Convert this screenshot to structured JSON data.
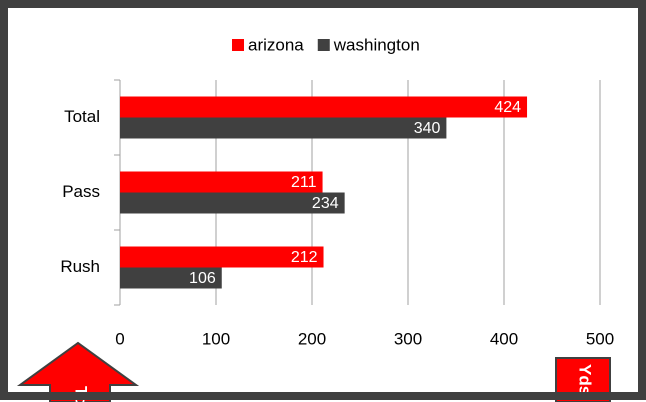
{
  "chart_data": {
    "type": "hbar",
    "categories": [
      "Total",
      "Pass",
      "Rush"
    ],
    "series": [
      {
        "name": "arizona",
        "color": "#ff0000",
        "values": [
          424,
          211,
          212
        ]
      },
      {
        "name": "washington",
        "color": "#404040",
        "values": [
          340,
          234,
          106
        ]
      }
    ],
    "xlim": [
      0,
      500
    ],
    "xticks": [
      0,
      100,
      200,
      300,
      400,
      500
    ],
    "grid": true,
    "legend": "top",
    "annotations": [
      "To",
      "Yds"
    ]
  }
}
